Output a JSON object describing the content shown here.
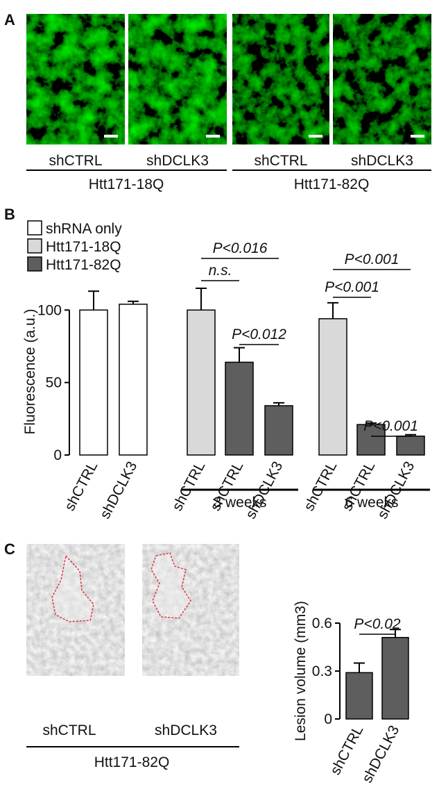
{
  "panel_labels": [
    "A",
    "B",
    "C"
  ],
  "panel_a": {
    "image_labels": [
      "shCTRL",
      "shDCLK3",
      "shCTRL",
      "shDCLK3"
    ],
    "group_labels": [
      "Htt171-18Q",
      "Htt171-82Q"
    ]
  },
  "panel_c": {
    "image_labels": [
      "shCTRL",
      "shDCLK3"
    ],
    "group_label": "Htt171-82Q"
  },
  "chart_data": [
    {
      "type": "bar",
      "y_label": "Fluorescence (a.u.)",
      "categories": [
        "shCTRL",
        "shDCLK3",
        "shCTRL",
        "shCTRL",
        "shDCLK3",
        "shCTRL",
        "shCTRL",
        "shDCLK3"
      ],
      "series": [
        {
          "name": "shRNA only",
          "color": "#ffffff",
          "values": [
            100,
            104,
            null,
            null,
            null,
            null,
            null,
            null
          ],
          "errors": [
            13,
            2,
            null,
            null,
            null,
            null,
            null,
            null
          ]
        },
        {
          "name": "Htt171-18Q",
          "color": "#d9d9d9",
          "values": [
            null,
            null,
            100,
            null,
            null,
            94,
            null,
            null
          ],
          "errors": [
            null,
            null,
            15,
            null,
            null,
            11,
            null,
            null
          ]
        },
        {
          "name": "Htt171-82Q",
          "color": "#5e5e5e",
          "values": [
            null,
            null,
            null,
            64,
            34,
            null,
            21,
            13
          ],
          "errors": [
            null,
            null,
            null,
            10,
            2,
            null,
            1,
            1
          ]
        }
      ],
      "group_labels": [
        "3 weeks",
        "6 weeks"
      ],
      "annotations": [
        "n.s.",
        "P<0.016",
        "P<0.012",
        "P<0.001",
        "P<0.001",
        "P<0.001"
      ],
      "ylim": [
        0,
        115
      ],
      "yticks": [
        0,
        50,
        100
      ]
    },
    {
      "type": "bar",
      "y_label": "Lesion volume (mm3)",
      "categories": [
        "shCTRL",
        "shDCLK3"
      ],
      "values": [
        0.29,
        0.51
      ],
      "errors": [
        0.06,
        0.05
      ],
      "color": "#5e5e5e",
      "annotations": [
        "P<0.02"
      ],
      "ylim": [
        0,
        0.6
      ],
      "yticks": [
        0,
        0.3,
        0.6
      ]
    }
  ]
}
